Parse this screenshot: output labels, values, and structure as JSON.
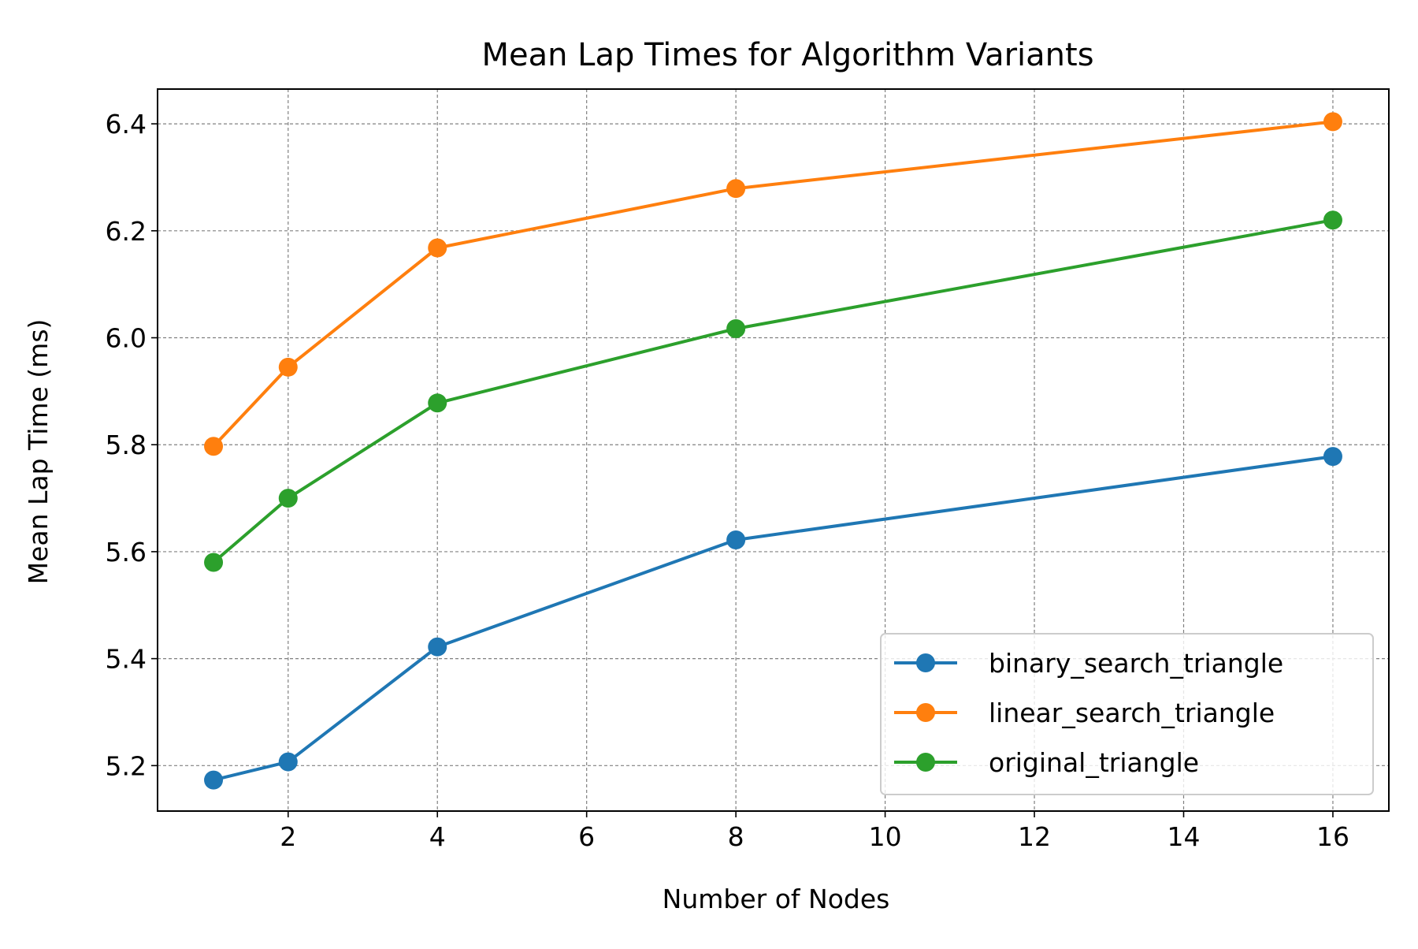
{
  "chart_data": {
    "type": "line",
    "title": "Mean Lap Times for Algorithm Variants",
    "xlabel": "Number of Nodes",
    "ylabel": "Mean Lap Time (ms)",
    "x": [
      1,
      2,
      4,
      8,
      16
    ],
    "xlim": [
      0.25,
      16.75
    ],
    "ylim": [
      5.115,
      6.465
    ],
    "xticks": [
      2,
      4,
      6,
      8,
      10,
      12,
      14,
      16
    ],
    "yticks": [
      5.2,
      5.4,
      5.6,
      5.8,
      6.0,
      6.2,
      6.4
    ],
    "xtick_labels": [
      "2",
      "4",
      "6",
      "8",
      "10",
      "12",
      "14",
      "16"
    ],
    "ytick_labels": [
      "5.2",
      "5.4",
      "5.6",
      "5.8",
      "6.0",
      "6.2",
      "6.4"
    ],
    "grid": true,
    "legend_position": "lower-right",
    "series": [
      {
        "name": "binary_search_triangle",
        "color": "#1f77b4",
        "values": [
          5.173,
          5.207,
          5.422,
          5.622,
          5.778
        ]
      },
      {
        "name": "linear_search_triangle",
        "color": "#ff7f0e",
        "values": [
          5.797,
          5.945,
          6.168,
          6.279,
          6.404
        ]
      },
      {
        "name": "original_triangle",
        "color": "#2ca02c",
        "values": [
          5.58,
          5.7,
          5.878,
          6.017,
          6.22
        ]
      }
    ]
  }
}
